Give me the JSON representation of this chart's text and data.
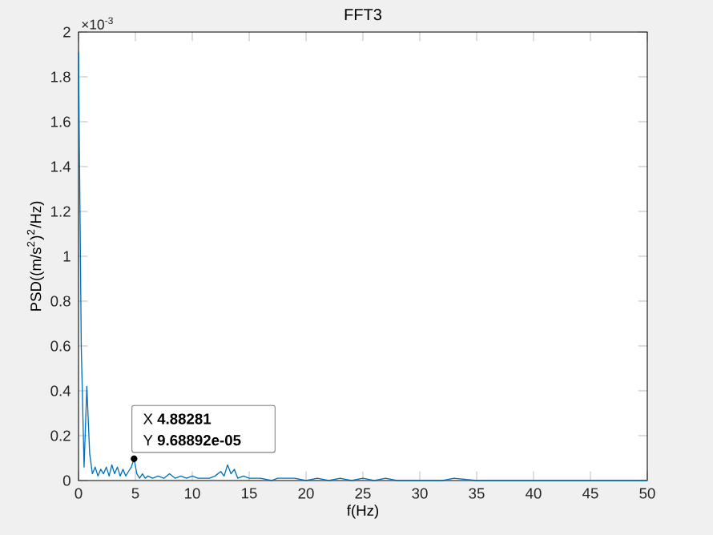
{
  "chart_data": {
    "type": "line",
    "title": "FFT3",
    "xlabel": "f(Hz)",
    "ylabel": "PSD((m/s$^{2}$)$^{2}$/Hz)",
    "x": [
      0,
      0.24,
      0.49,
      0.73,
      0.98,
      1.22,
      1.46,
      1.71,
      1.95,
      2.2,
      2.44,
      2.69,
      2.93,
      3.17,
      3.42,
      3.66,
      3.91,
      4.15,
      4.39,
      4.64,
      4.88281,
      5.13,
      5.37,
      5.62,
      5.86,
      6.1,
      6.5,
      7,
      7.5,
      8,
      8.5,
      9,
      9.5,
      10,
      10.5,
      11,
      11.5,
      12,
      12.5,
      12.8,
      13.1,
      13.4,
      13.7,
      14,
      14.5,
      15,
      16,
      17,
      17.5,
      18,
      19,
      20,
      21,
      22,
      23,
      24,
      25,
      26,
      27,
      28,
      30,
      32,
      33,
      35,
      37,
      40,
      42,
      45,
      47,
      50
    ],
    "series": [
      {
        "color": "#0072bd",
        "values": [
          1.91,
          0.6,
          0.06,
          0.42,
          0.12,
          0.03,
          0.06,
          0.02,
          0.05,
          0.03,
          0.06,
          0.02,
          0.07,
          0.03,
          0.06,
          0.02,
          0.05,
          0.02,
          0.04,
          0.06,
          0.0968892,
          0.03,
          0.01,
          0.03,
          0.01,
          0.02,
          0.01,
          0.02,
          0.01,
          0.03,
          0.01,
          0.02,
          0.01,
          0.02,
          0.01,
          0.01,
          0.01,
          0.02,
          0.04,
          0.02,
          0.07,
          0.03,
          0.05,
          0.01,
          0.02,
          0.01,
          0.01,
          0.0,
          0.01,
          0.01,
          0.01,
          0.0,
          0.01,
          0.0,
          0.01,
          0.0,
          0.01,
          0.0,
          0.01,
          0.0,
          0.0,
          0.0,
          0.01,
          0.0,
          0.0,
          0.0,
          0.0,
          0.0,
          0.0,
          0.0
        ]
      }
    ],
    "xlim": [
      0,
      50
    ],
    "xticks": [
      0,
      5,
      10,
      15,
      20,
      25,
      30,
      35,
      40,
      45,
      50
    ],
    "ylim": [
      0,
      2
    ],
    "yticks": [
      0,
      0.2,
      0.4,
      0.6,
      0.8,
      1,
      1.2,
      1.4,
      1.6,
      1.8,
      2
    ],
    "annotations": [
      "×10$^{-3}$",
      {
        "text": "X **4.88281**",
        "x": 4.88281,
        "y": 0.0968892
      },
      {
        "text": "Y **9.68892e-05**",
        "x": 4.88281,
        "y": 0.0968892
      }
    ]
  }
}
